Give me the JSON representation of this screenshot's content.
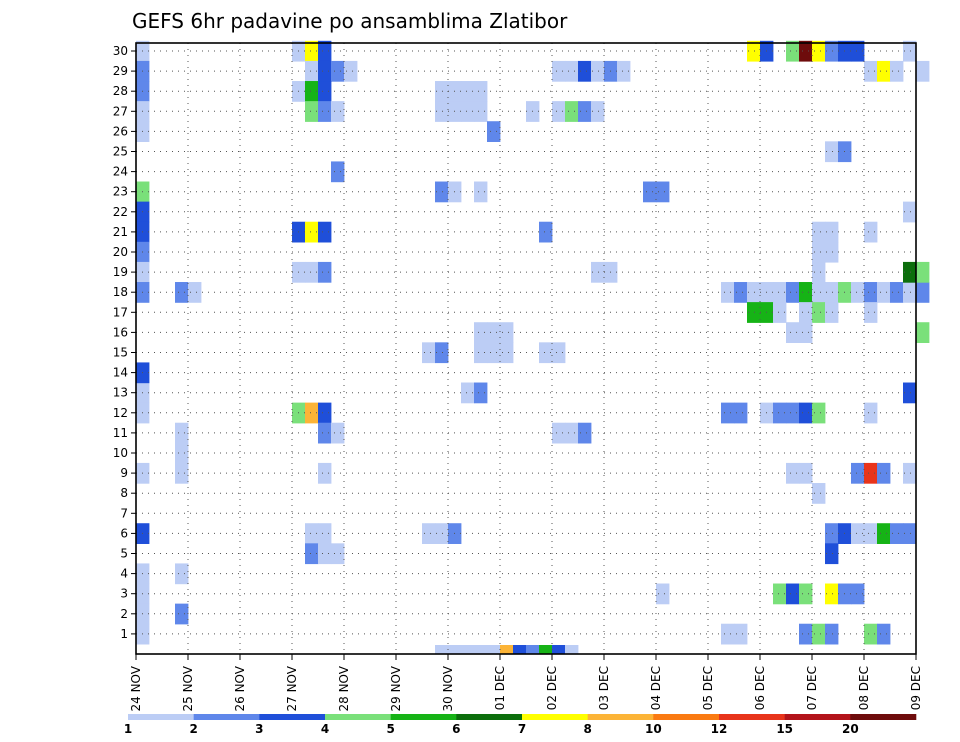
{
  "chart_data": {
    "type": "heatmap",
    "title": "GEFS 6hr padavine po ansamblima Zlatibor",
    "x_tick_labels": [
      "24 NOV",
      "25 NOV",
      "26 NOV",
      "27 NOV",
      "28 NOV",
      "29 NOV",
      "30 NOV",
      "01 DEC",
      "02 DEC",
      "03 DEC",
      "04 DEC",
      "05 DEC",
      "06 DEC",
      "07 DEC",
      "08 DEC",
      "09 DEC"
    ],
    "y_tick_labels": [
      "1",
      "2",
      "3",
      "4",
      "5",
      "6",
      "7",
      "8",
      "9",
      "10",
      "11",
      "12",
      "13",
      "14",
      "15",
      "16",
      "17",
      "18",
      "19",
      "20",
      "21",
      "22",
      "23",
      "24",
      "25",
      "26",
      "27",
      "28",
      "29",
      "30"
    ],
    "x_unit": "6-hour step from 24 NOV 00Z",
    "ylim": [
      0,
      30
    ],
    "grid": true,
    "colorbar": {
      "labels": [
        "1",
        "2",
        "3",
        "4",
        "5",
        "6",
        "7",
        "8",
        "10",
        "12",
        "15",
        "20"
      ],
      "colors": [
        "#bccdf5",
        "#5f87ea",
        "#1f4fd9",
        "#7ae07a",
        "#16b316",
        "#0c6e0c",
        "#ffff00",
        "#fcb437",
        "#fa7a11",
        "#e8341b",
        "#b3141a",
        "#6e0c0c"
      ]
    },
    "cells": [
      [
        0,
        29,
        1
      ],
      [
        0,
        28,
        2
      ],
      [
        0,
        27,
        2
      ],
      [
        0,
        26,
        1
      ],
      [
        0,
        25,
        1
      ],
      [
        0,
        22,
        4
      ],
      [
        0,
        21,
        3
      ],
      [
        0,
        20,
        3
      ],
      [
        0,
        19,
        2
      ],
      [
        0,
        18,
        1
      ],
      [
        0,
        17,
        2
      ],
      [
        0,
        12,
        1
      ],
      [
        0,
        11,
        1
      ],
      [
        0,
        8,
        1
      ],
      [
        0,
        5,
        3
      ],
      [
        0,
        3,
        1
      ],
      [
        0,
        2,
        1
      ],
      [
        0,
        1,
        1
      ],
      [
        0,
        0,
        1
      ],
      [
        0,
        13,
        3
      ],
      [
        3,
        17,
        2
      ],
      [
        4,
        17,
        1
      ],
      [
        3,
        10,
        1
      ],
      [
        3,
        9,
        1
      ],
      [
        3,
        8,
        1
      ],
      [
        3,
        3,
        1
      ],
      [
        3,
        1,
        2
      ],
      [
        12,
        29,
        1
      ],
      [
        13,
        29,
        7
      ],
      [
        14,
        29,
        3
      ],
      [
        13,
        28,
        1
      ],
      [
        14,
        28,
        3
      ],
      [
        15,
        28,
        2
      ],
      [
        16,
        28,
        1
      ],
      [
        12,
        27,
        1
      ],
      [
        13,
        27,
        5
      ],
      [
        14,
        27,
        3
      ],
      [
        13,
        26,
        4
      ],
      [
        14,
        26,
        2
      ],
      [
        15,
        26,
        1
      ],
      [
        15,
        23,
        2
      ],
      [
        12,
        20,
        3
      ],
      [
        13,
        20,
        7
      ],
      [
        14,
        20,
        3
      ],
      [
        12,
        18,
        1
      ],
      [
        13,
        18,
        1
      ],
      [
        14,
        18,
        2
      ],
      [
        12,
        11,
        4
      ],
      [
        13,
        11,
        8
      ],
      [
        14,
        11,
        3
      ],
      [
        14,
        10,
        2
      ],
      [
        15,
        10,
        1
      ],
      [
        14,
        8,
        1
      ],
      [
        13,
        5,
        1
      ],
      [
        14,
        5,
        1
      ],
      [
        13,
        4,
        2
      ],
      [
        14,
        4,
        1
      ],
      [
        15,
        4,
        1
      ],
      [
        23,
        27,
        1
      ],
      [
        24,
        27,
        1
      ],
      [
        25,
        27,
        1
      ],
      [
        26,
        27,
        1
      ],
      [
        23,
        26,
        1
      ],
      [
        24,
        26,
        1
      ],
      [
        25,
        26,
        1
      ],
      [
        26,
        26,
        1
      ],
      [
        27,
        25,
        2
      ],
      [
        23,
        22,
        2
      ],
      [
        24,
        22,
        1
      ],
      [
        26,
        22,
        1
      ],
      [
        22,
        14,
        1
      ],
      [
        23,
        14,
        2
      ],
      [
        25,
        12,
        1
      ],
      [
        26,
        12,
        2
      ],
      [
        22,
        5,
        1
      ],
      [
        23,
        5,
        1
      ],
      [
        24,
        5,
        2
      ],
      [
        26,
        15,
        1
      ],
      [
        27,
        15,
        1
      ],
      [
        28,
        15,
        1
      ],
      [
        26,
        14,
        1
      ],
      [
        27,
        14,
        1
      ],
      [
        28,
        14,
        1
      ],
      [
        23,
        -1,
        1
      ],
      [
        24,
        -1,
        1
      ],
      [
        25,
        -1,
        1
      ],
      [
        26,
        -1,
        1
      ],
      [
        27,
        -1,
        1
      ],
      [
        28,
        -1,
        8
      ],
      [
        29,
        -1,
        3
      ],
      [
        30,
        -1,
        2
      ],
      [
        31,
        -1,
        5
      ],
      [
        32,
        -1,
        3
      ],
      [
        33,
        -1,
        1
      ],
      [
        30,
        26,
        1
      ],
      [
        32,
        26,
        1
      ],
      [
        33,
        26,
        4
      ],
      [
        34,
        26,
        2
      ],
      [
        35,
        26,
        1
      ],
      [
        32,
        28,
        1
      ],
      [
        33,
        28,
        1
      ],
      [
        34,
        28,
        3
      ],
      [
        35,
        28,
        1
      ],
      [
        36,
        28,
        2
      ],
      [
        37,
        28,
        1
      ],
      [
        31,
        20,
        2
      ],
      [
        31,
        14,
        1
      ],
      [
        32,
        14,
        1
      ],
      [
        32,
        10,
        1
      ],
      [
        33,
        10,
        1
      ],
      [
        34,
        10,
        2
      ],
      [
        35,
        18,
        1
      ],
      [
        36,
        18,
        1
      ],
      [
        39,
        22,
        2
      ],
      [
        40,
        22,
        2
      ],
      [
        40,
        2,
        1
      ],
      [
        45,
        17,
        1
      ],
      [
        46,
        17,
        2
      ],
      [
        47,
        17,
        1
      ],
      [
        48,
        17,
        1
      ],
      [
        49,
        17,
        1
      ],
      [
        50,
        17,
        2
      ],
      [
        51,
        17,
        5
      ],
      [
        52,
        17,
        1
      ],
      [
        53,
        17,
        1
      ],
      [
        54,
        17,
        4
      ],
      [
        55,
        17,
        1
      ],
      [
        56,
        17,
        2
      ],
      [
        57,
        17,
        1
      ],
      [
        58,
        17,
        2
      ],
      [
        59,
        17,
        1
      ],
      [
        60,
        17,
        2
      ],
      [
        52,
        18,
        1
      ],
      [
        51,
        16,
        1
      ],
      [
        52,
        16,
        4
      ],
      [
        53,
        16,
        1
      ],
      [
        50,
        15,
        1
      ],
      [
        45,
        11,
        2
      ],
      [
        46,
        11,
        2
      ],
      [
        48,
        11,
        1
      ],
      [
        49,
        11,
        2
      ],
      [
        50,
        11,
        2
      ],
      [
        51,
        11,
        3
      ],
      [
        52,
        11,
        4
      ],
      [
        47,
        16,
        5
      ],
      [
        48,
        16,
        5
      ],
      [
        49,
        16,
        1
      ],
      [
        51,
        15,
        1
      ],
      [
        50,
        8,
        1
      ],
      [
        51,
        8,
        1
      ],
      [
        52,
        7,
        1
      ],
      [
        53,
        5,
        2
      ],
      [
        54,
        5,
        3
      ],
      [
        55,
        5,
        1
      ],
      [
        53,
        4,
        3
      ],
      [
        49,
        2,
        4
      ],
      [
        50,
        2,
        3
      ],
      [
        51,
        2,
        4
      ],
      [
        53,
        2,
        7
      ],
      [
        54,
        2,
        2
      ],
      [
        55,
        2,
        2
      ],
      [
        51,
        0,
        2
      ],
      [
        52,
        0,
        4
      ],
      [
        53,
        0,
        2
      ],
      [
        45,
        0,
        1
      ],
      [
        46,
        0,
        1
      ],
      [
        53,
        24,
        1
      ],
      [
        54,
        24,
        2
      ],
      [
        52,
        20,
        1
      ],
      [
        53,
        20,
        1
      ],
      [
        52,
        19,
        1
      ],
      [
        53,
        19,
        1
      ],
      [
        56,
        16,
        1
      ],
      [
        56,
        11,
        1
      ],
      [
        55,
        8,
        2
      ],
      [
        56,
        8,
        10
      ],
      [
        57,
        8,
        2
      ],
      [
        59,
        8,
        1
      ],
      [
        56,
        5,
        1
      ],
      [
        57,
        5,
        5
      ],
      [
        58,
        5,
        2
      ],
      [
        59,
        5,
        2
      ],
      [
        56,
        0,
        4
      ],
      [
        57,
        0,
        2
      ],
      [
        56,
        20,
        1
      ],
      [
        59,
        21,
        1
      ],
      [
        59,
        18,
        6
      ],
      [
        60,
        18,
        4
      ],
      [
        60,
        15,
        4
      ],
      [
        59,
        12,
        3
      ],
      [
        56,
        28,
        1
      ],
      [
        57,
        28,
        7
      ],
      [
        58,
        28,
        1
      ],
      [
        60,
        28,
        1
      ],
      [
        59,
        29,
        1
      ],
      [
        47,
        29,
        7
      ],
      [
        48,
        29,
        3
      ],
      [
        50,
        29,
        4
      ],
      [
        51,
        29,
        12
      ],
      [
        52,
        29,
        7
      ],
      [
        53,
        29,
        2
      ],
      [
        54,
        29,
        3
      ],
      [
        55,
        29,
        3
      ]
    ]
  }
}
